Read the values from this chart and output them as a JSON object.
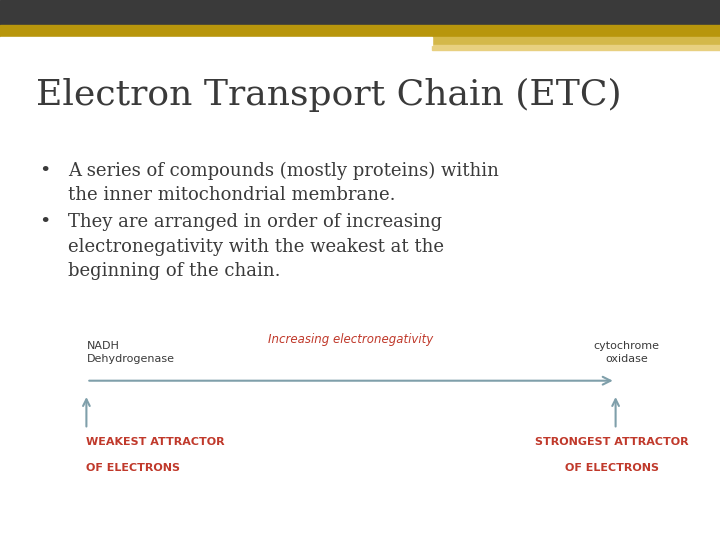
{
  "title": "Electron Transport Chain (ETC)",
  "title_color": "#3a3a3a",
  "title_fontsize": 26,
  "background_color": "#ffffff",
  "header_bar_dark": "#3a3a3a",
  "header_bar_gold": "#b8960c",
  "header_bar_light_gold": "#d4b84a",
  "bullet1_line1": "A series of compounds (mostly proteins) within",
  "bullet1_line2": "the inner mitochondrial membrane.",
  "bullet2_line1": "They are arranged in order of increasing",
  "bullet2_line2": "electronegativity with the weakest at the",
  "bullet2_line3": "beginning of the chain.",
  "bullet_color": "#3a3a3a",
  "bullet_fontsize": 13,
  "arrow_label": "Increasing electronegativity",
  "arrow_label_color": "#c0392b",
  "arrow_color": "#7f9faa",
  "left_label_line1": "NADH",
  "left_label_line2": "Dehydrogenase",
  "right_label_line1": "cytochrome",
  "right_label_line2": "oxidase",
  "label_color": "#3a3a3a",
  "label_fontsize": 8,
  "weakest_line1": "WEAKEST ATTRACTOR",
  "weakest_line2": "OF ELECTRONS",
  "strongest_line1": "STRONGEST ATTRACTOR",
  "strongest_line2": "OF ELECTRONS",
  "attractor_color": "#c0392b",
  "attractor_fontsize": 8
}
